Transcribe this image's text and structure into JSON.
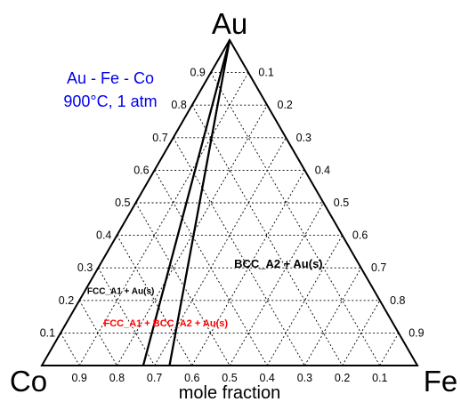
{
  "chart_data": {
    "type": "ternary",
    "corners": {
      "top": "Au",
      "left": "Co",
      "right": "Fe"
    },
    "info_lines": [
      "Au - Fe - Co",
      "900°C, 1 atm"
    ],
    "axis_title": "mole fraction",
    "grid_step": 0.1,
    "grid": true,
    "ticks": {
      "left_edge": [
        "0.1",
        "0.2",
        "0.3",
        "0.4",
        "0.5",
        "0.6",
        "0.7",
        "0.8",
        "0.9"
      ],
      "right_edge": [
        "0.1",
        "0.2",
        "0.3",
        "0.4",
        "0.5",
        "0.6",
        "0.7",
        "0.8",
        "0.9"
      ],
      "bottom_edge": [
        "0.9",
        "0.8",
        "0.7",
        "0.6",
        "0.5",
        "0.4",
        "0.3",
        "0.2",
        "0.1"
      ]
    },
    "phase_boundaries": [
      {
        "from": {
          "Au": 1.0,
          "Fe": 0.0,
          "Co": 0.0
        },
        "to": {
          "Au": 0.0,
          "Fe": 0.27,
          "Co": 0.73
        }
      },
      {
        "from": {
          "Au": 1.0,
          "Fe": 0.0,
          "Co": 0.0
        },
        "to": {
          "Au": 0.0,
          "Fe": 0.34,
          "Co": 0.66
        }
      }
    ],
    "regions": [
      {
        "label": "BCC_A2 + Au(s)",
        "Au": 0.3,
        "Fe": 0.48,
        "color": "#000000",
        "size": 13
      },
      {
        "label": "FCC_A1 + Au(s)",
        "Au": 0.22,
        "Fe": 0.1,
        "color": "#000000",
        "size": 10
      },
      {
        "label": "FCC_A1 + BCC_A2 + Au(s)",
        "Au": 0.12,
        "Fe": 0.27,
        "color": "#ff0000",
        "size": 11
      }
    ],
    "colors": {
      "info": "#0000ee",
      "lines": "#000000",
      "grid": "#000000"
    }
  }
}
